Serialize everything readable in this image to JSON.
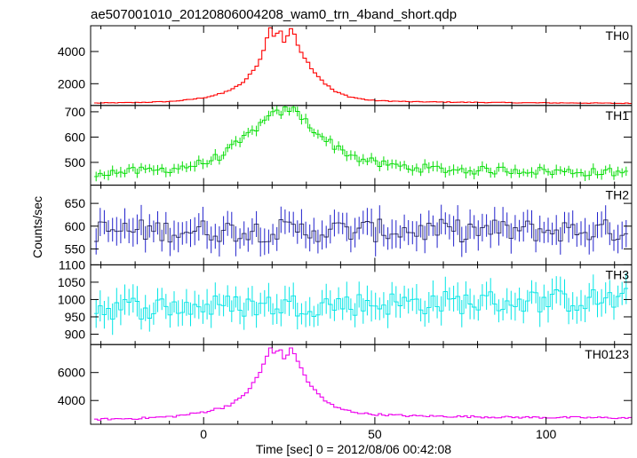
{
  "chart_data": {
    "type": "line",
    "title": "ae507001010_20120806004208_wam0_trn_4band_short.qdp",
    "xlabel": "Time [sec] 0 = 2012/08/06 00:42:08",
    "ylabel": "Counts/sec",
    "xlim": [
      -33,
      125
    ],
    "x_ticks": [
      0,
      50,
      100
    ],
    "x_tick_labels": [
      "0",
      "50",
      "100"
    ],
    "panels": [
      {
        "name": "TH0",
        "color": "#ff0000",
        "ylim": [
          650,
          5600
        ],
        "y_ticks": [
          2000,
          4000
        ],
        "y_tick_labels": [
          "2000",
          "4000"
        ],
        "error_bars": false,
        "x": [
          -32,
          -20,
          -10,
          -5,
          0,
          5,
          8,
          10,
          12,
          14,
          16,
          18,
          19,
          20,
          21,
          22,
          23,
          24,
          25,
          26,
          27,
          28,
          30,
          32,
          35,
          38,
          42,
          47,
          50,
          60,
          75,
          90,
          110,
          124
        ],
        "y": [
          800,
          830,
          900,
          1000,
          1150,
          1400,
          1700,
          1900,
          2300,
          2800,
          3500,
          4800,
          5500,
          4900,
          5200,
          5300,
          4600,
          5000,
          5300,
          5100,
          4500,
          4000,
          3300,
          2700,
          2000,
          1500,
          1200,
          1000,
          950,
          880,
          850,
          820,
          800,
          780
        ]
      },
      {
        "name": "TH1",
        "color": "#00dd00",
        "ylim": [
          410,
          725
        ],
        "y_ticks": [
          500,
          600,
          700
        ],
        "y_tick_labels": [
          "500",
          "600",
          "700"
        ],
        "error_bars": true,
        "err": 18,
        "x": [
          -32,
          -25,
          -20,
          -15,
          -10,
          -5,
          0,
          5,
          10,
          15,
          20,
          22,
          24,
          26,
          28,
          30,
          35,
          40,
          45,
          50,
          60,
          70,
          80,
          90,
          100,
          110,
          124
        ],
        "y": [
          460,
          462,
          465,
          468,
          475,
          485,
          500,
          530,
          580,
          640,
          690,
          700,
          710,
          705,
          680,
          650,
          590,
          545,
          515,
          495,
          480,
          472,
          468,
          470,
          465,
          462,
          460
        ]
      },
      {
        "name": "TH2",
        "color": "#2222cc",
        "ylim": [
          515,
          690
        ],
        "y_ticks": [
          550,
          600,
          650
        ],
        "y_tick_labels": [
          "550",
          "600",
          "650"
        ],
        "error_bars": true,
        "err": 28,
        "x": [
          -32,
          124
        ],
        "y": [
          590,
          590
        ]
      },
      {
        "name": "TH3",
        "color": "#00e5e5",
        "ylim": [
          870,
          1100
        ],
        "y_ticks": [
          900,
          950,
          1000,
          1050,
          1100
        ],
        "y_tick_labels": [
          "900",
          "950",
          "1000",
          "1050",
          "1100"
        ],
        "error_bars": true,
        "err": 38,
        "x": [
          -32,
          124
        ],
        "y": [
          975,
          1000
        ]
      },
      {
        "name": "TH0123",
        "color": "#ee00ee",
        "ylim": [
          2300,
          8000
        ],
        "y_ticks": [
          4000,
          6000
        ],
        "y_tick_labels": [
          "4000",
          "6000"
        ],
        "error_bars": false,
        "x": [
          -32,
          -20,
          -10,
          -5,
          0,
          5,
          8,
          10,
          12,
          14,
          16,
          18,
          19,
          20,
          21,
          22,
          23,
          24,
          25,
          26,
          27,
          28,
          30,
          32,
          35,
          38,
          42,
          47,
          50,
          60,
          75,
          90,
          110,
          124
        ],
        "y": [
          2650,
          2720,
          2850,
          3000,
          3200,
          3500,
          3800,
          4100,
          4600,
          5200,
          6000,
          7200,
          7700,
          7300,
          7500,
          7600,
          7000,
          7400,
          7600,
          7400,
          6900,
          6200,
          5400,
          4700,
          4000,
          3500,
          3250,
          3050,
          3000,
          2900,
          2850,
          2800,
          2780,
          2750
        ]
      }
    ]
  }
}
